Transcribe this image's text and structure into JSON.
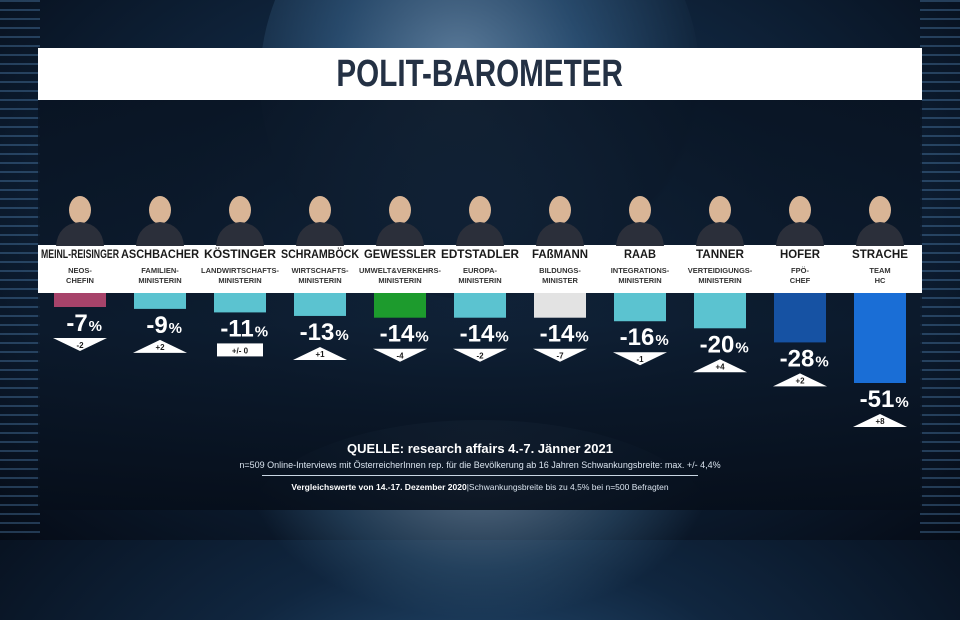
{
  "title": "POLIT-BAROMETER",
  "chart_data": {
    "type": "bar",
    "title": "POLIT-BAROMETER",
    "categories": [
      "MEINL-REISINGER",
      "ASCHBACHER",
      "KÖSTINGER",
      "SCHRAMBÖCK",
      "GEWESSLER",
      "EDTSTADLER",
      "FAßMANN",
      "RAAB",
      "TANNER",
      "HOFER",
      "STRACHE"
    ],
    "roles": [
      [
        "NEOS-",
        "CHEFIN"
      ],
      [
        "FAMILIEN-",
        "MINISTERIN"
      ],
      [
        "LANDWIRTSCHAFTS-",
        "MINISTERIN"
      ],
      [
        "WIRTSCHAFTS-",
        "MINISTERIN"
      ],
      [
        "UMWELT&VERKEHRS-",
        "MINISTERIN"
      ],
      [
        "EUROPA-",
        "MINISTERIN"
      ],
      [
        "BILDUNGS-",
        "MINISTER"
      ],
      [
        "INTEGRATIONS-",
        "MINISTERIN"
      ],
      [
        "VERTEIDIGUNGS-",
        "MINISTERIN"
      ],
      [
        "FPÖ-",
        "CHEF"
      ],
      [
        "TEAM",
        "HC"
      ]
    ],
    "values": [
      -7,
      -9,
      -11,
      -13,
      -14,
      -14,
      -14,
      -16,
      -20,
      -28,
      -51
    ],
    "value_labels": [
      "-7",
      "-9",
      "-11",
      "-13",
      "-14",
      "-14",
      "-14",
      "-16",
      "-20",
      "-28",
      "-51"
    ],
    "percent_sign": "%",
    "changes": [
      "-2",
      "+2",
      "+/- 0",
      "+1",
      "-4",
      "-2",
      "-7",
      "-1",
      "+4",
      "+2",
      "+8"
    ],
    "change_direction": [
      "down",
      "up",
      "neutral",
      "up",
      "down",
      "down",
      "down",
      "down",
      "up",
      "up",
      "up"
    ],
    "colors": [
      "#a7436a",
      "#5bc3d0",
      "#5bc3d0",
      "#5bc3d0",
      "#1d9b2d",
      "#5bc3d0",
      "#e3e3e3",
      "#5bc3d0",
      "#5bc3d0",
      "#1652a3",
      "#1a6ed6"
    ],
    "ylim": [
      -51,
      0
    ]
  },
  "source": "QUELLE: research affairs 4.-7. Jänner 2021",
  "note1": "n=509 Online-Interviews mit ÖsterreicherInnen rep. für die Bevölkerung ab 16 Jahren  Schwankungsbreite: max. +/- 4,4%",
  "note2_bold": "Vergleichswerte von 14.-17. Dezember 2020",
  "note2_rest": "|Schwankungsbreite bis zu 4,5% bei n=500 Befragten"
}
